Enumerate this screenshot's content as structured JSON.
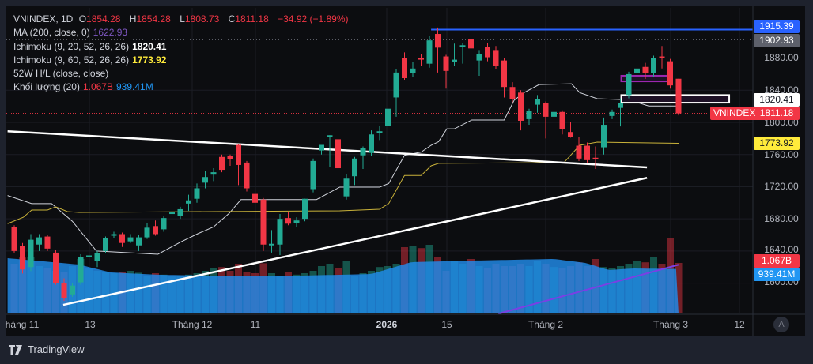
{
  "legend": {
    "symbol": "VNINDEX, 1D",
    "open_label": "O",
    "open": "1854.28",
    "high_label": "H",
    "high": "1854.28",
    "low_label": "L",
    "low": "1808.73",
    "close_label": "C",
    "close": "1811.18",
    "change": "−34.92 (−1.89%)",
    "ma_label": "MA (200, close, 0)",
    "ma_value": "1622.93",
    "ichi1_label": "Ichimoku (9, 20, 52, 26, 26)",
    "ichi1_value": "1820.41",
    "ichi2_label": "Ichimoku (9, 60, 52, 26, 26)",
    "ichi2_value": "1773.92",
    "hl_label": "52W H/L (close, close)",
    "vol_label": "Khối lượng (20)",
    "vol_value": "1.067B",
    "vol_ma_value": "939.41M"
  },
  "y_axis": [
    "1880.00",
    "1840.00",
    "1800.00",
    "1760.00",
    "1720.00",
    "1680.00",
    "1640.00",
    "1600.00"
  ],
  "badges": {
    "high52": "1915.39",
    "dotted": "1902.93",
    "ichi1": "1820.41",
    "last": "1811.18",
    "ichi2": "1773.92",
    "volume": "1.067B",
    "volume_ma": "939.41M",
    "symbol_tag": "VNINDEX"
  },
  "x_axis": [
    "háng 11",
    "13",
    "Tháng 12",
    "11",
    "2026",
    "15",
    "Tháng 2",
    "Tháng 3",
    "12"
  ],
  "auto_button": "A",
  "footer": {
    "brand": "TradingView"
  },
  "colors": {
    "up": "#22ab94",
    "down": "#f23645",
    "ichi1": "#d1d4dc",
    "ichi2": "#c9b23a",
    "ma": "#7b3fe4",
    "high52": "#2962ff",
    "volume_ma": "#2a87e0"
  },
  "chart_data": {
    "type": "candlestick",
    "columns": [
      "open",
      "high",
      "low",
      "close"
    ],
    "candles": [
      [
        1670,
        1672,
        1638,
        1640
      ],
      [
        1646,
        1650,
        1612,
        1617
      ],
      [
        1620,
        1661,
        1615,
        1654
      ],
      [
        1648,
        1661,
        1640,
        1657
      ],
      [
        1658,
        1660,
        1640,
        1643
      ],
      [
        1638,
        1641,
        1598,
        1600
      ],
      [
        1600,
        1606,
        1578,
        1581
      ],
      [
        1586,
        1600,
        1583,
        1597
      ],
      [
        1601,
        1636,
        1598,
        1633
      ],
      [
        1634,
        1640,
        1628,
        1634.5
      ],
      [
        1628,
        1640,
        1620,
        1637
      ],
      [
        1640,
        1658,
        1637,
        1656
      ],
      [
        1659,
        1664,
        1656,
        1661
      ],
      [
        1661,
        1663,
        1645,
        1650
      ],
      [
        1652,
        1661,
        1650,
        1657
      ],
      [
        1647,
        1660,
        1640,
        1657
      ],
      [
        1657,
        1675,
        1655,
        1669
      ],
      [
        1671,
        1678,
        1659,
        1661
      ],
      [
        1667,
        1683,
        1664,
        1681
      ],
      [
        1686,
        1696,
        1684,
        1688
      ],
      [
        1684,
        1695,
        1680,
        1692
      ],
      [
        1699,
        1710,
        1690,
        1703
      ],
      [
        1705,
        1724,
        1700,
        1718
      ],
      [
        1725,
        1740,
        1718,
        1732
      ],
      [
        1735,
        1743,
        1727,
        1738
      ],
      [
        1757,
        1760,
        1738,
        1741
      ],
      [
        1758,
        1760,
        1746,
        1754
      ],
      [
        1772,
        1773,
        1722,
        1747
      ],
      [
        1750,
        1752,
        1714,
        1718
      ],
      [
        1711,
        1720,
        1697,
        1700
      ],
      [
        1704,
        1706,
        1640,
        1648
      ],
      [
        1647,
        1666,
        1638,
        1649
      ],
      [
        1648,
        1686,
        1635,
        1680
      ],
      [
        1681,
        1688,
        1672,
        1674
      ],
      [
        1675,
        1682,
        1670,
        1678
      ],
      [
        1680,
        1705,
        1677,
        1705
      ],
      [
        1717,
        1755,
        1713,
        1752
      ],
      [
        1765,
        1772,
        1760,
        1772
      ],
      [
        1782,
        1784,
        1745,
        1784
      ],
      [
        1779,
        1806,
        1740,
        1743
      ],
      [
        1708,
        1736,
        1704,
        1730
      ],
      [
        1733,
        1757,
        1722,
        1755
      ],
      [
        1759,
        1770,
        1742,
        1768
      ],
      [
        1762,
        1790,
        1758,
        1785
      ],
      [
        1787,
        1796,
        1778,
        1789
      ],
      [
        1796,
        1825,
        1790,
        1817
      ],
      [
        1831,
        1866,
        1807,
        1862
      ],
      [
        1880,
        1887,
        1853,
        1855
      ],
      [
        1861,
        1875,
        1856,
        1867
      ],
      [
        1880,
        1885,
        1870,
        1878
      ],
      [
        1873,
        1908,
        1868,
        1902
      ],
      [
        1910,
        1918,
        1862,
        1893
      ],
      [
        1882,
        1884,
        1842,
        1864
      ],
      [
        1875,
        1898,
        1870,
        1878
      ],
      [
        1894,
        1899,
        1873,
        1896
      ],
      [
        1904,
        1916,
        1886,
        1892
      ],
      [
        1877,
        1890,
        1858,
        1885
      ],
      [
        1894,
        1899,
        1876,
        1881
      ],
      [
        1890,
        1895,
        1866,
        1870
      ],
      [
        1877,
        1880,
        1831,
        1844
      ],
      [
        1844,
        1850,
        1825,
        1829
      ],
      [
        1837,
        1840,
        1790,
        1802
      ],
      [
        1804,
        1817,
        1797,
        1814
      ],
      [
        1822,
        1834,
        1812,
        1829
      ],
      [
        1824,
        1826,
        1780,
        1807
      ],
      [
        1807,
        1830,
        1805,
        1813
      ],
      [
        1813,
        1815,
        1785,
        1792
      ],
      [
        1788,
        1800,
        1781,
        1782
      ],
      [
        1771,
        1782,
        1752,
        1755
      ],
      [
        1771,
        1775,
        1750,
        1753
      ],
      [
        1756,
        1770,
        1742,
        1754
      ],
      [
        1769,
        1806,
        1760,
        1797
      ],
      [
        1808,
        1816,
        1804,
        1813
      ],
      [
        1818,
        1830,
        1795,
        1824
      ],
      [
        1834,
        1863,
        1830,
        1860
      ],
      [
        1861,
        1870,
        1853,
        1867
      ],
      [
        1869,
        1874,
        1854,
        1861
      ],
      [
        1861,
        1883,
        1857,
        1880
      ],
      [
        1882,
        1895,
        1867,
        1880
      ],
      [
        1876,
        1879,
        1842,
        1846
      ],
      [
        1854.28,
        1854.28,
        1808.73,
        1811.18
      ]
    ],
    "volume_millions": [
      1050,
      1180,
      1200,
      1000,
      950,
      900,
      880,
      1000,
      1150,
      950,
      900,
      880,
      850,
      870,
      900,
      860,
      800,
      850,
      820,
      780,
      800,
      820,
      850,
      900,
      950,
      980,
      900,
      1050,
      880,
      850,
      1060,
      850,
      800,
      870,
      820,
      850,
      900,
      1000,
      1050,
      950,
      1100,
      800,
      850,
      900,
      980,
      1000,
      1050,
      1400,
      1420,
      1380,
      1450,
      1200,
      900,
      1100,
      1050,
      1150,
      1000,
      950,
      1050,
      1000,
      1000,
      1050,
      1000,
      1100,
      1050,
      980,
      950,
      1000,
      1080,
      1000,
      1150,
      980,
      950,
      1000,
      1050,
      1100,
      1080,
      1200,
      1050,
      1600,
      1067
    ],
    "volume_ma_keyframes": [
      [
        -0.8,
        1167
      ],
      [
        7.8,
        1033
      ],
      [
        11.6,
        867
      ],
      [
        17.3,
        817
      ],
      [
        29.7,
        783
      ],
      [
        39.2,
        817
      ],
      [
        43,
        833
      ],
      [
        47.8,
        1083
      ],
      [
        55.4,
        1117
      ],
      [
        65,
        1150
      ],
      [
        68.8,
        1067
      ],
      [
        71.6,
        917
      ],
      [
        74.5,
        950
      ],
      [
        80,
        939.41
      ]
    ],
    "ichimoku_20_keyframes": [
      [
        -0.8,
        1709
      ],
      [
        2.1,
        1699
      ],
      [
        4.5,
        1699
      ],
      [
        7,
        1677
      ],
      [
        9.9,
        1640
      ],
      [
        17.3,
        1636
      ],
      [
        20,
        1651
      ],
      [
        22.1,
        1661.5
      ],
      [
        24,
        1670
      ],
      [
        25.9,
        1687
      ],
      [
        27.3,
        1704
      ],
      [
        36.4,
        1704
      ],
      [
        39.2,
        1719.5
      ],
      [
        44,
        1719.5
      ],
      [
        45.1,
        1724
      ],
      [
        47,
        1759
      ],
      [
        49,
        1763
      ],
      [
        50.2,
        1771.5
      ],
      [
        51.1,
        1776
      ],
      [
        52.1,
        1792
      ],
      [
        53,
        1792
      ],
      [
        55.1,
        1803
      ],
      [
        59,
        1803
      ],
      [
        60.2,
        1827.5
      ],
      [
        61.4,
        1837
      ],
      [
        63.2,
        1847
      ],
      [
        67.1,
        1848
      ],
      [
        68.1,
        1837
      ],
      [
        70.2,
        1829.5
      ],
      [
        72.9,
        1828.5
      ],
      [
        74.2,
        1827.5
      ],
      [
        76.4,
        1820.41
      ],
      [
        79.9,
        1820.41
      ]
    ],
    "ichimoku_60_keyframes": [
      [
        -0.8,
        1674
      ],
      [
        1.1,
        1682
      ],
      [
        2.1,
        1691
      ],
      [
        4,
        1691
      ],
      [
        5,
        1695
      ],
      [
        6.4,
        1689
      ],
      [
        7.8,
        1688
      ],
      [
        39.2,
        1690
      ],
      [
        44,
        1692
      ],
      [
        45.1,
        1699
      ],
      [
        47,
        1734
      ],
      [
        49,
        1734
      ],
      [
        50.2,
        1746
      ],
      [
        51.1,
        1749
      ],
      [
        66.2,
        1750
      ],
      [
        68.1,
        1771.5
      ],
      [
        70.2,
        1775.4
      ],
      [
        80,
        1773.92
      ]
    ],
    "ma200_keyframes": [
      [
        58.3,
        1562
      ],
      [
        80,
        1622.93
      ]
    ],
    "trendlines": [
      [
        [
          -0.8,
          1789
        ],
        [
          76.2,
          1744
        ]
      ],
      [
        [
          5.9,
          1573
        ],
        [
          76.2,
          1731
        ]
      ]
    ],
    "high52": 1915.39,
    "dotted_level": 1902.93,
    "last_price": 1811.18,
    "zones": [
      {
        "from": 73.1,
        "to": 79.2,
        "top": 1858,
        "bottom": 1851,
        "color": "#9c27b0"
      },
      {
        "from": 73.1,
        "to": 86.1,
        "top": 1834,
        "bottom": 1824.5,
        "color": "#ffffff"
      }
    ],
    "ylim": [
      1560,
      1940
    ]
  }
}
